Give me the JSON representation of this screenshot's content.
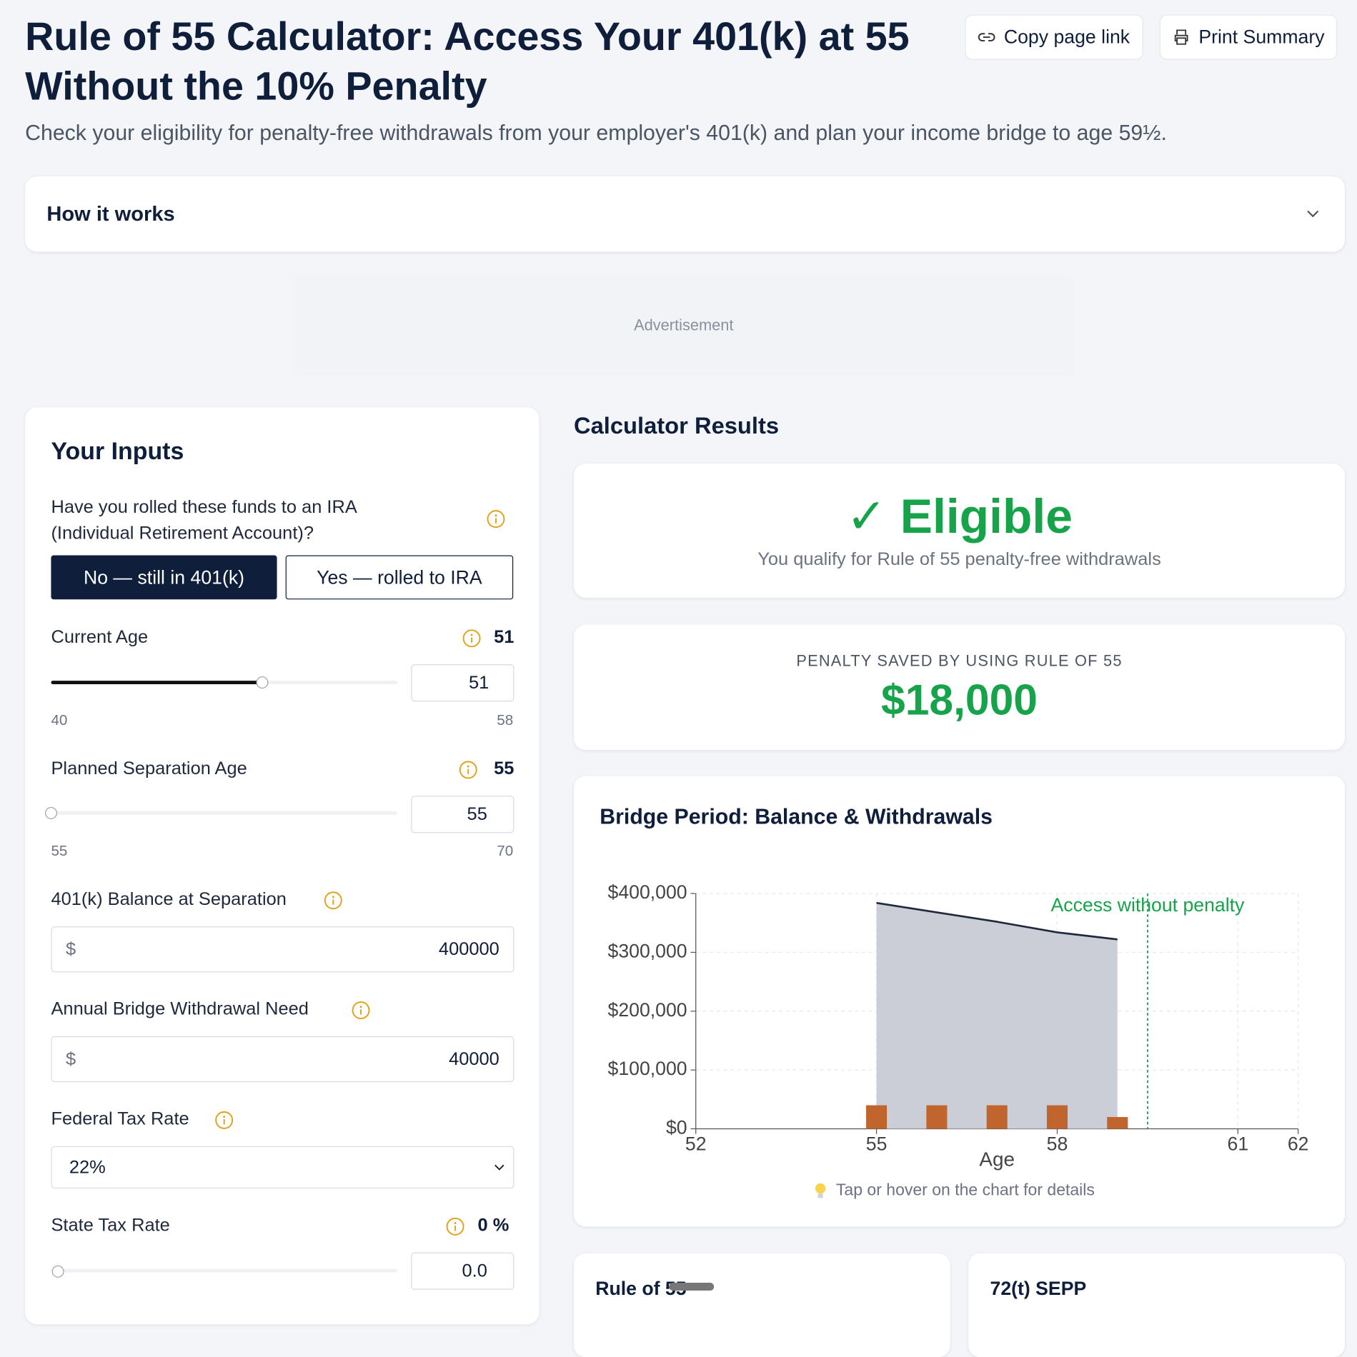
{
  "header": {
    "title": "Rule of 55 Calculator: Access Your 401(k) at 55 Without the 10% Penalty",
    "subtitle": "Check your eligibility for penalty-free withdrawals from your employer's 401(k) and plan your income bridge to age 59½.",
    "buttons": [
      "Copy page link",
      "Print Summary"
    ]
  },
  "how_it_works": "How it works",
  "advertisement": "Advertisement",
  "inputs": {
    "title": "Your Inputs",
    "rollover": {
      "label": "Have you rolled these funds to an IRA (Individual Retirement Account)?",
      "options": [
        "No — still in 401(k)",
        "Yes — rolled to IRA"
      ]
    },
    "current_age": {
      "label": "Current Age",
      "value": 51,
      "min": 40,
      "max": 58
    },
    "separation_age": {
      "label": "Planned Separation Age",
      "value": 55,
      "min": 55,
      "max": 70
    },
    "balance": {
      "label": "401(k) Balance at Separation",
      "currency": "$",
      "value": 400000
    },
    "withdrawal": {
      "label": "Annual Bridge Withdrawal Need",
      "currency": "$",
      "value": 40000
    },
    "federal_tax": {
      "label": "Federal Tax Rate",
      "value": "22%"
    },
    "state_tax": {
      "label": "State Tax Rate",
      "value": 0,
      "unit": "%",
      "input": "0.0"
    }
  },
  "results": {
    "title": "Calculator Results",
    "status": "✓ Eligible",
    "status_note": "You qualify for Rule of 55 penalty-free withdrawals",
    "penalty_label": "PENALTY SAVED BY USING RULE OF 55",
    "penalty_value": "$18,000",
    "chart": {
      "type": "area",
      "title": "Bridge Period: Balance & Withdrawals",
      "x_label": "Age",
      "x": [
        55,
        56,
        57,
        58,
        59
      ],
      "series": [
        {
          "type": "area",
          "color": "#1e293b",
          "values": [
            384000,
            368000,
            352000,
            334000,
            322000
          ]
        },
        {
          "type": "bar",
          "color": "#c0652e",
          "values": [
            40000,
            40000,
            40000,
            40000,
            20000
          ]
        }
      ],
      "xlim": [
        52,
        62
      ],
      "xticks": [
        52,
        55,
        58,
        61,
        62
      ],
      "ylim": [
        0,
        400000
      ],
      "yticks": [
        {
          "value": 0,
          "label": "$0"
        },
        {
          "value": 100000,
          "label": "$100,000"
        },
        {
          "value": 200000,
          "label": "$200,000"
        },
        {
          "value": 300000,
          "label": "$300,000"
        },
        {
          "value": 400000,
          "label": "$400,000"
        }
      ],
      "grid": true,
      "annotation": {
        "text": "Access without penalty",
        "x": 59.5,
        "color": "#16a34a"
      }
    },
    "chart_hint": "Tap or hover on the chart for details",
    "cards": [
      "Rule of 55",
      "72(t) SEPP"
    ]
  }
}
